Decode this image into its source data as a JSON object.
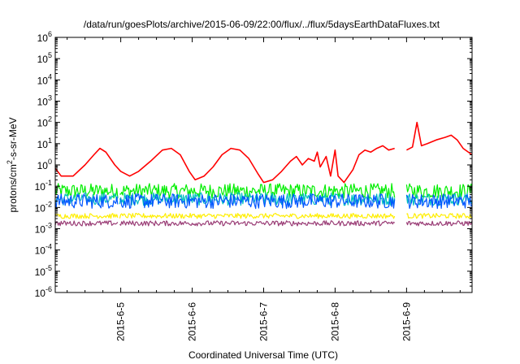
{
  "chart_data": {
    "type": "line",
    "title": "/data/run/goesPlots/archive/2015-06-09/22:00/flux/../flux/5daysEarthDataFluxes.txt",
    "xlabel": "Coordinated Universal Time (UTC)",
    "ylabel": {
      "prefix": "protons/cm",
      "sup": "2",
      "suffix": "-s-sr-MeV"
    },
    "yscale": "log",
    "ylim_exp": [
      -6,
      6
    ],
    "y_tick_labels": [
      {
        "exp": -6,
        "base": "10",
        "power": "-6"
      },
      {
        "exp": -5,
        "base": "10",
        "power": "-5"
      },
      {
        "exp": -4,
        "base": "10",
        "power": "-4"
      },
      {
        "exp": -3,
        "base": "10",
        "power": "-3"
      },
      {
        "exp": -2,
        "base": "10",
        "power": "-2"
      },
      {
        "exp": -1,
        "base": "10",
        "power": "-1"
      },
      {
        "exp": 0,
        "base": "10",
        "power": "0"
      },
      {
        "exp": 1,
        "base": "10",
        "power": "1"
      },
      {
        "exp": 2,
        "base": "10",
        "power": "2"
      },
      {
        "exp": 3,
        "base": "10",
        "power": "3"
      },
      {
        "exp": 4,
        "base": "10",
        "power": "4"
      },
      {
        "exp": 5,
        "base": "10",
        "power": "5"
      },
      {
        "exp": 6,
        "base": "10",
        "power": "6"
      }
    ],
    "xlim": [
      "2015-06-04 02:00",
      "2015-06-09 22:00"
    ],
    "x_ticks": [
      "2015-6-5",
      "2015-6-6",
      "2015-6-7",
      "2015-6-8",
      "2015-6-9"
    ],
    "data_gaps": [
      [
        "2015-06-04 23:00",
        "2015-06-04 23:30"
      ],
      [
        "2015-06-08 20:00",
        "2015-06-09 00:00"
      ]
    ],
    "grid": false,
    "series": [
      {
        "color": "#ff0000",
        "points": [
          [
            "2015-06-04 02:00",
            0.7
          ],
          [
            "2015-06-04 04:00",
            0.3
          ],
          [
            "2015-06-04 08:00",
            0.3
          ],
          [
            "2015-06-04 12:00",
            1.0
          ],
          [
            "2015-06-04 15:00",
            3.0
          ],
          [
            "2015-06-04 17:00",
            6.0
          ],
          [
            "2015-06-04 19:00",
            4.0
          ],
          [
            "2015-06-04 22:00",
            1.0
          ],
          [
            "2015-06-05 00:00",
            0.5
          ],
          [
            "2015-06-05 03:00",
            0.3
          ],
          [
            "2015-06-05 06:00",
            0.5
          ],
          [
            "2015-06-05 10:00",
            1.5
          ],
          [
            "2015-06-05 14:00",
            5.0
          ],
          [
            "2015-06-05 17:00",
            6.0
          ],
          [
            "2015-06-05 20:00",
            3.0
          ],
          [
            "2015-06-05 23:00",
            0.5
          ],
          [
            "2015-06-06 01:00",
            0.2
          ],
          [
            "2015-06-06 04:00",
            0.3
          ],
          [
            "2015-06-06 07:00",
            0.8
          ],
          [
            "2015-06-06 10:00",
            3.0
          ],
          [
            "2015-06-06 13:00",
            6.0
          ],
          [
            "2015-06-06 16:00",
            5.0
          ],
          [
            "2015-06-06 19:00",
            2.0
          ],
          [
            "2015-06-06 22:00",
            0.4
          ],
          [
            "2015-06-07 00:00",
            0.15
          ],
          [
            "2015-06-07 03:00",
            0.2
          ],
          [
            "2015-06-07 06:00",
            0.5
          ],
          [
            "2015-06-07 09:00",
            1.5
          ],
          [
            "2015-06-07 11:00",
            2.5
          ],
          [
            "2015-06-07 13:00",
            1.0
          ],
          [
            "2015-06-07 15:00",
            2.0
          ],
          [
            "2015-06-07 17:00",
            1.5
          ],
          [
            "2015-06-07 18:00",
            4.0
          ],
          [
            "2015-06-07 19:00",
            0.8
          ],
          [
            "2015-06-07 21:00",
            2.5
          ],
          [
            "2015-06-07 22:30",
            0.3
          ],
          [
            "2015-06-08 00:00",
            5.0
          ],
          [
            "2015-06-08 01:00",
            0.3
          ],
          [
            "2015-06-08 03:00",
            0.15
          ],
          [
            "2015-06-08 06:00",
            0.6
          ],
          [
            "2015-06-08 08:00",
            3.0
          ],
          [
            "2015-06-08 10:00",
            5.0
          ],
          [
            "2015-06-08 12:00",
            4.0
          ],
          [
            "2015-06-08 14:00",
            6.0
          ],
          [
            "2015-06-08 16:00",
            8.0
          ],
          [
            "2015-06-08 18:00",
            5.0
          ],
          [
            "2015-06-08 20:00",
            6.0
          ],
          null,
          [
            "2015-06-09 00:00",
            5.0
          ],
          [
            "2015-06-09 02:00",
            7.0
          ],
          [
            "2015-06-09 03:30",
            100.0
          ],
          [
            "2015-06-09 05:00",
            8.0
          ],
          [
            "2015-06-09 07:00",
            10.0
          ],
          [
            "2015-06-09 10:00",
            15.0
          ],
          [
            "2015-06-09 13:00",
            20.0
          ],
          [
            "2015-06-09 15:00",
            25.0
          ],
          [
            "2015-06-09 17:00",
            15.0
          ],
          [
            "2015-06-09 19:00",
            6.0
          ],
          [
            "2015-06-09 22:00",
            3.0
          ]
        ]
      },
      {
        "color": "#00ee00",
        "level": 0.06,
        "noise_exp": 0.35
      },
      {
        "color": "#00c0c0",
        "level": 0.025,
        "noise_exp": 0.3
      },
      {
        "color": "#0055ff",
        "level": 0.02,
        "noise_exp": 0.35
      },
      {
        "color": "#ffee00",
        "level": 0.004,
        "noise_exp": 0.12
      },
      {
        "color": "#9a3d76",
        "level": 0.0018,
        "noise_exp": 0.12
      }
    ]
  }
}
